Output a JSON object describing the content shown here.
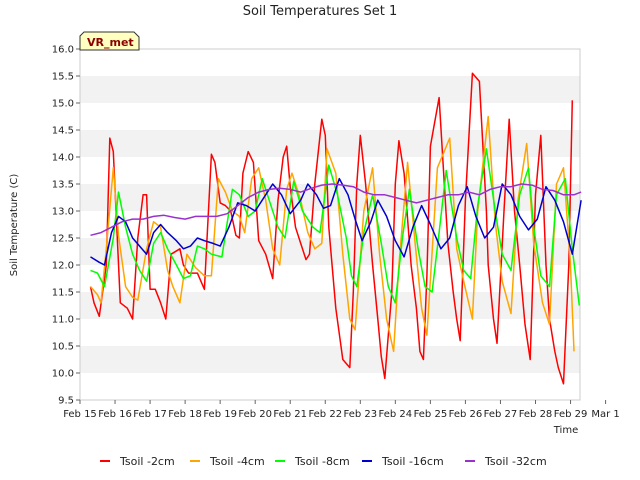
{
  "chart_data": {
    "type": "line",
    "title": "Soil Temperatures Set 1",
    "xlabel": "Time",
    "ylabel": "Soil Temperature (C)",
    "badge": "VR_met",
    "xlim": [
      0,
      14.27
    ],
    "ylim": [
      9.5,
      16.0
    ],
    "yticks": [
      "9.5",
      "10.0",
      "10.5",
      "11.0",
      "11.5",
      "12.0",
      "12.5",
      "13.0",
      "13.5",
      "14.0",
      "14.5",
      "15.0",
      "15.5",
      "16.0"
    ],
    "xticks": [
      "Feb 15",
      "Feb 16",
      "Feb 17",
      "Feb 18",
      "Feb 19",
      "Feb 20",
      "Feb 21",
      "Feb 22",
      "Feb 23",
      "Feb 24",
      "Feb 25",
      "Feb 26",
      "Feb 27",
      "Feb 28",
      "Feb 29",
      "Mar 1"
    ],
    "grid": "horizontal bands",
    "legend_position": "bottom",
    "series": [
      {
        "name": "Tsoil -2cm",
        "color": "#ff0000",
        "x": [
          0.3,
          0.4,
          0.55,
          0.75,
          0.85,
          0.95,
          1.15,
          1.35,
          1.5,
          1.65,
          1.8,
          1.9,
          2.0,
          2.15,
          2.3,
          2.45,
          2.6,
          2.85,
          2.95,
          3.1,
          3.35,
          3.55,
          3.75,
          3.85,
          4.0,
          4.15,
          4.3,
          4.45,
          4.55,
          4.65,
          4.8,
          4.95,
          5.1,
          5.3,
          5.5,
          5.65,
          5.8,
          5.9,
          6.0,
          6.15,
          6.3,
          6.45,
          6.55,
          6.7,
          6.9,
          7.0,
          7.1,
          7.3,
          7.5,
          7.7,
          7.8,
          7.9,
          8.0,
          8.15,
          8.35,
          8.5,
          8.6,
          8.7,
          8.9,
          9.0,
          9.1,
          9.25,
          9.45,
          9.6,
          9.7,
          9.8,
          9.9,
          10.0,
          10.25,
          10.5,
          10.65,
          10.75,
          10.85,
          11.0,
          11.2,
          11.4,
          11.6,
          11.65,
          11.8,
          11.9,
          12.1,
          12.25,
          12.4,
          12.55,
          12.7,
          12.85,
          13.0,
          13.15,
          13.3,
          13.4,
          13.55,
          13.65,
          13.8,
          13.95,
          14.05
        ],
        "y": [
          11.6,
          11.3,
          11.05,
          12.0,
          14.35,
          14.1,
          11.3,
          11.2,
          11.0,
          12.5,
          13.3,
          13.3,
          11.55,
          11.55,
          11.3,
          11.0,
          12.2,
          12.3,
          12.0,
          11.85,
          11.85,
          11.55,
          14.05,
          13.9,
          13.15,
          13.1,
          13.0,
          12.55,
          12.5,
          13.7,
          14.1,
          13.9,
          12.45,
          12.2,
          11.75,
          13.2,
          14.0,
          14.2,
          13.45,
          12.7,
          12.4,
          12.1,
          12.2,
          13.5,
          14.7,
          14.4,
          12.7,
          11.2,
          10.25,
          10.1,
          11.5,
          13.5,
          14.4,
          13.5,
          12.0,
          11.0,
          10.3,
          9.9,
          11.5,
          13.5,
          14.3,
          13.7,
          12.0,
          11.2,
          10.4,
          10.25,
          11.8,
          14.2,
          15.1,
          12.4,
          11.5,
          11.0,
          10.6,
          13.2,
          15.55,
          15.4,
          13.0,
          12.0,
          11.0,
          10.55,
          13.0,
          14.7,
          13.0,
          12.0,
          10.9,
          10.25,
          13.3,
          14.4,
          12.0,
          11.0,
          10.4,
          10.1,
          9.8,
          12.0,
          15.05
        ]
      },
      {
        "name": "Tsoil -4cm",
        "color": "#ffa500",
        "x": [
          0.3,
          0.5,
          0.6,
          0.75,
          0.95,
          1.1,
          1.3,
          1.5,
          1.65,
          1.9,
          2.1,
          2.3,
          2.5,
          2.65,
          2.85,
          3.05,
          3.3,
          3.55,
          3.75,
          3.95,
          4.15,
          4.35,
          4.55,
          4.7,
          4.9,
          5.1,
          5.3,
          5.5,
          5.7,
          5.9,
          6.05,
          6.3,
          6.5,
          6.7,
          6.9,
          7.05,
          7.3,
          7.5,
          7.7,
          7.85,
          8.1,
          8.35,
          8.55,
          8.75,
          8.95,
          9.1,
          9.35,
          9.55,
          9.75,
          9.9,
          10.2,
          10.55,
          10.75,
          10.95,
          11.2,
          11.35,
          11.65,
          11.85,
          12.05,
          12.3,
          12.5,
          12.75,
          12.95,
          13.2,
          13.4,
          13.6,
          13.8,
          14.0,
          14.1
        ],
        "y": [
          11.6,
          11.45,
          11.3,
          12.3,
          13.8,
          12.55,
          11.6,
          11.4,
          11.35,
          12.3,
          12.8,
          12.7,
          11.9,
          11.6,
          11.3,
          12.2,
          11.95,
          11.8,
          11.8,
          13.6,
          13.35,
          13.0,
          12.9,
          12.6,
          13.6,
          13.8,
          13.2,
          12.3,
          12.0,
          13.4,
          13.7,
          13.2,
          12.6,
          12.3,
          12.4,
          14.15,
          13.7,
          12.2,
          11.0,
          10.8,
          13.0,
          13.8,
          12.2,
          11.0,
          10.4,
          12.0,
          13.9,
          12.5,
          11.2,
          10.7,
          13.8,
          14.35,
          12.3,
          11.7,
          11.0,
          13.0,
          14.75,
          12.8,
          11.7,
          11.1,
          13.2,
          14.25,
          12.4,
          11.3,
          10.9,
          13.5,
          13.8,
          12.0,
          10.4
        ]
      },
      {
        "name": "Tsoil -8cm",
        "color": "#00ff00",
        "x": [
          0.3,
          0.5,
          0.7,
          0.95,
          1.1,
          1.3,
          1.5,
          1.7,
          1.9,
          2.1,
          2.3,
          2.5,
          2.75,
          2.95,
          3.15,
          3.35,
          3.55,
          3.75,
          4.05,
          4.35,
          4.55,
          4.8,
          5.0,
          5.2,
          5.4,
          5.65,
          5.85,
          6.1,
          6.35,
          6.65,
          6.85,
          7.1,
          7.35,
          7.6,
          7.75,
          7.9,
          8.1,
          8.35,
          8.6,
          8.8,
          9.0,
          9.2,
          9.4,
          9.65,
          9.85,
          10.05,
          10.25,
          10.45,
          10.75,
          10.95,
          11.15,
          11.35,
          11.6,
          11.85,
          12.05,
          12.3,
          12.55,
          12.8,
          12.95,
          13.15,
          13.4,
          13.6,
          13.85,
          14.05,
          14.25
        ],
        "y": [
          11.9,
          11.85,
          11.6,
          12.5,
          13.35,
          12.7,
          12.2,
          11.9,
          11.7,
          12.4,
          12.6,
          12.3,
          12.0,
          11.75,
          11.8,
          12.35,
          12.3,
          12.2,
          12.15,
          13.4,
          13.3,
          12.9,
          13.0,
          13.6,
          13.2,
          12.7,
          12.5,
          13.55,
          13.0,
          12.7,
          12.6,
          13.85,
          13.3,
          12.5,
          11.8,
          11.6,
          12.6,
          13.3,
          12.4,
          11.6,
          11.3,
          12.5,
          13.4,
          12.3,
          11.6,
          11.5,
          12.6,
          13.75,
          12.5,
          11.9,
          11.75,
          13.1,
          14.15,
          13.0,
          12.2,
          11.9,
          13.3,
          13.8,
          12.7,
          11.8,
          11.6,
          13.3,
          13.6,
          12.3,
          11.25
        ]
      },
      {
        "name": "Tsoil -16cm",
        "color": "#0000cd",
        "x": [
          0.3,
          0.55,
          0.7,
          0.9,
          1.1,
          1.3,
          1.5,
          1.7,
          1.9,
          2.1,
          2.3,
          2.5,
          2.75,
          2.95,
          3.15,
          3.35,
          3.55,
          3.8,
          4.0,
          4.25,
          4.5,
          4.75,
          5.0,
          5.2,
          5.5,
          5.75,
          6.0,
          6.3,
          6.5,
          6.75,
          6.95,
          7.15,
          7.4,
          7.65,
          7.85,
          8.05,
          8.3,
          8.5,
          8.75,
          9.0,
          9.25,
          9.5,
          9.75,
          10.0,
          10.3,
          10.55,
          10.8,
          11.05,
          11.3,
          11.55,
          11.8,
          12.05,
          12.3,
          12.55,
          12.8,
          13.05,
          13.3,
          13.55,
          13.8,
          14.05,
          14.3
        ],
        "y": [
          12.15,
          12.05,
          12.0,
          12.6,
          12.9,
          12.8,
          12.5,
          12.35,
          12.2,
          12.6,
          12.75,
          12.6,
          12.45,
          12.3,
          12.35,
          12.5,
          12.45,
          12.4,
          12.35,
          12.7,
          13.15,
          13.1,
          13.0,
          13.2,
          13.5,
          13.3,
          12.95,
          13.2,
          13.5,
          13.3,
          13.05,
          13.1,
          13.6,
          13.3,
          12.85,
          12.45,
          12.8,
          13.2,
          12.9,
          12.45,
          12.15,
          12.7,
          13.1,
          12.75,
          12.3,
          12.5,
          13.1,
          13.45,
          12.9,
          12.5,
          12.7,
          13.5,
          13.3,
          12.9,
          12.65,
          12.85,
          13.45,
          13.2,
          12.8,
          12.2,
          13.2
        ]
      },
      {
        "name": "Tsoil -32cm",
        "color": "#9932cc",
        "x": [
          0.3,
          0.6,
          0.9,
          1.2,
          1.5,
          1.8,
          2.1,
          2.4,
          2.7,
          3.0,
          3.3,
          3.6,
          3.9,
          4.2,
          4.5,
          4.8,
          5.1,
          5.4,
          5.7,
          6.0,
          6.3,
          6.6,
          6.9,
          7.2,
          7.5,
          7.8,
          8.1,
          8.4,
          8.7,
          9.0,
          9.3,
          9.6,
          9.9,
          10.2,
          10.5,
          10.8,
          11.1,
          11.4,
          11.7,
          12.0,
          12.3,
          12.6,
          12.9,
          13.2,
          13.5,
          13.8,
          14.1,
          14.3
        ],
        "y": [
          12.55,
          12.6,
          12.7,
          12.8,
          12.85,
          12.85,
          12.9,
          12.92,
          12.88,
          12.85,
          12.9,
          12.9,
          12.9,
          12.95,
          13.1,
          13.25,
          13.35,
          13.4,
          13.42,
          13.4,
          13.35,
          13.42,
          13.48,
          13.5,
          13.48,
          13.45,
          13.35,
          13.3,
          13.3,
          13.25,
          13.2,
          13.15,
          13.2,
          13.25,
          13.3,
          13.3,
          13.35,
          13.3,
          13.4,
          13.45,
          13.45,
          13.5,
          13.48,
          13.4,
          13.38,
          13.3,
          13.3,
          13.35
        ]
      }
    ]
  }
}
